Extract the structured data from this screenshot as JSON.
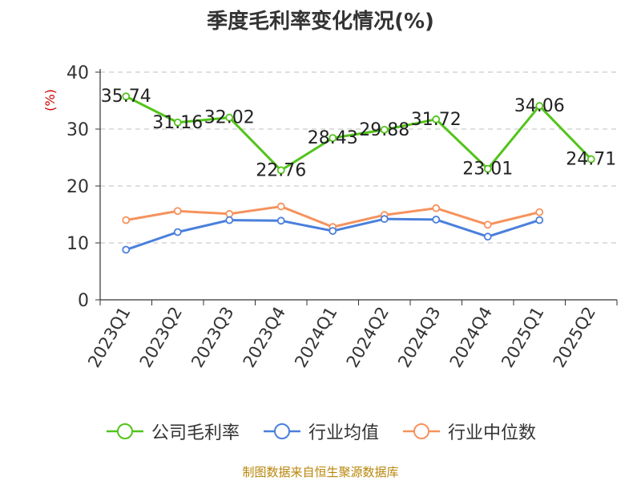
{
  "chart_data": {
    "type": "line",
    "title": "季度毛利率变化情况(%)",
    "ylabel": "(%)",
    "xlabel": "",
    "ylim": [
      0,
      40
    ],
    "yticks": [
      0,
      10,
      20,
      30,
      40
    ],
    "grid": true,
    "legend_position": "bottom",
    "categories": [
      "2023Q1",
      "2023Q2",
      "2023Q3",
      "2023Q4",
      "2024Q1",
      "2024Q2",
      "2024Q3",
      "2024Q4",
      "2025Q1",
      "2025Q2"
    ],
    "series": [
      {
        "name": "公司毛利率",
        "color": "#52c41a",
        "labeled": true,
        "values": [
          35.74,
          31.16,
          32.02,
          22.76,
          28.43,
          29.88,
          31.72,
          23.01,
          34.06,
          24.71
        ]
      },
      {
        "name": "行业均值",
        "color": "#4a7fdc",
        "labeled": false,
        "values": [
          8.8,
          11.9,
          14.0,
          13.9,
          12.1,
          14.2,
          14.1,
          11.1,
          14.0,
          null
        ]
      },
      {
        "name": "行业中位数",
        "color": "#f5925d",
        "labeled": false,
        "values": [
          14.0,
          15.6,
          15.1,
          16.4,
          12.8,
          14.9,
          16.1,
          13.2,
          15.4,
          null
        ]
      }
    ]
  },
  "footer": "制图数据来自恒生聚源数据库"
}
